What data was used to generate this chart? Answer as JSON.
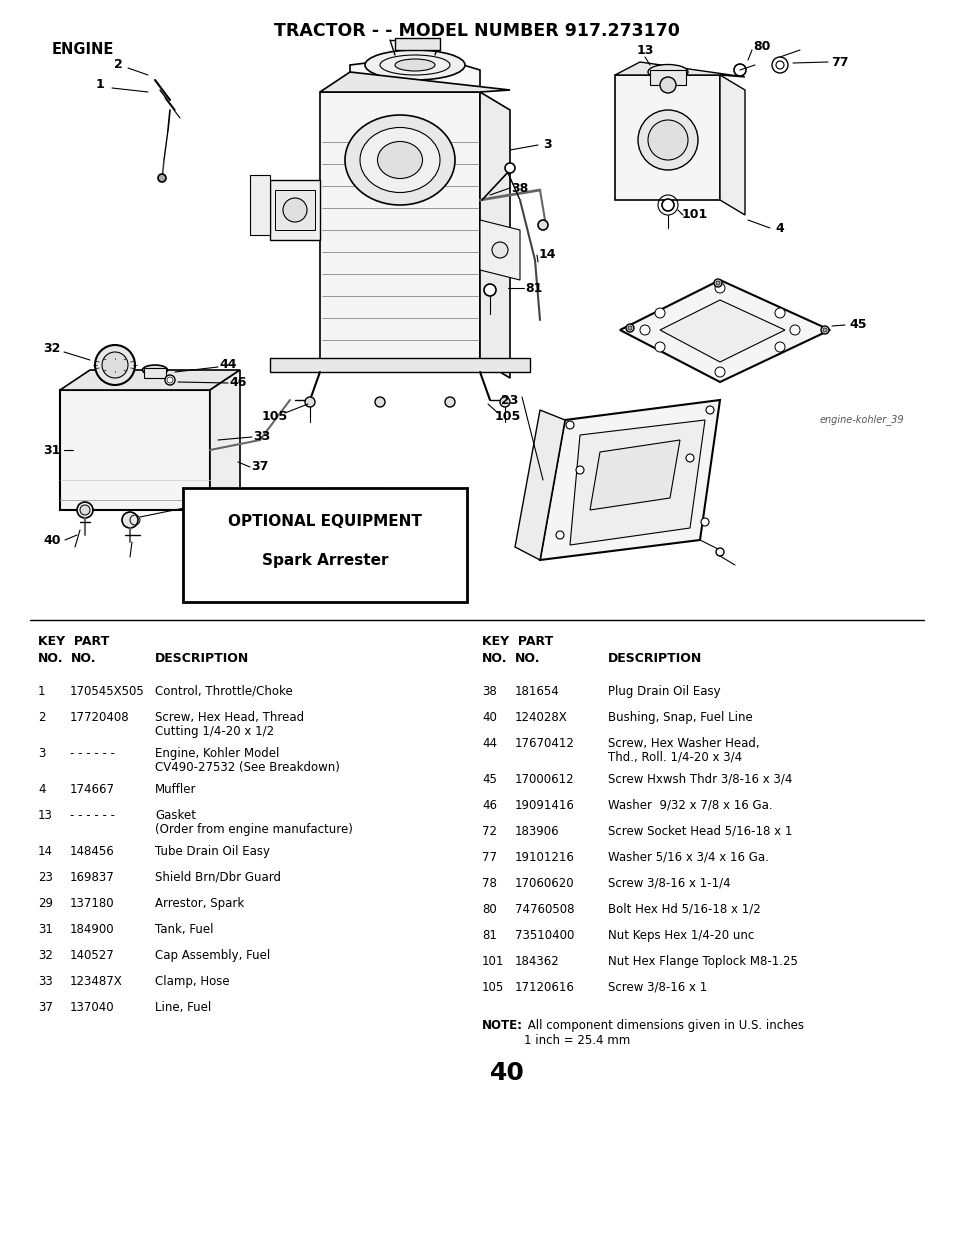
{
  "title": "TRACTOR - - MODEL NUMBER 917.273170",
  "section": "ENGINE",
  "image_credit": "engine-kohler_39",
  "page_number": "40",
  "optional_equipment_title": "OPTIONAL EQUIPMENT",
  "optional_equipment_item": "Spark Arrester",
  "bg_color": "#ffffff",
  "text_color": "#000000",
  "parts_left": [
    [
      "1",
      "170545X505",
      "Control, Throttle/Choke",
      false
    ],
    [
      "2",
      "17720408",
      "Screw, Hex Head, Thread",
      true,
      "Cutting 1/4-20 x 1/2"
    ],
    [
      "3",
      "- - - - - -",
      "Engine, Kohler Model",
      true,
      "CV490-27532 (See Breakdown)"
    ],
    [
      "4",
      "174667",
      "Muffler",
      false,
      ""
    ],
    [
      "13",
      "- - - - - -",
      "Gasket",
      true,
      "(Order from engine manufacture)"
    ],
    [
      "14",
      "148456",
      "Tube Drain Oil Easy",
      false,
      ""
    ],
    [
      "23",
      "169837",
      "Shield Brn/Dbr Guard",
      false,
      ""
    ],
    [
      "29",
      "137180",
      "Arrestor, Spark",
      false,
      ""
    ],
    [
      "31",
      "184900",
      "Tank, Fuel",
      false,
      ""
    ],
    [
      "32",
      "140527",
      "Cap Assembly, Fuel",
      false,
      ""
    ],
    [
      "33",
      "123487X",
      "Clamp, Hose",
      false,
      ""
    ],
    [
      "37",
      "137040",
      "Line, Fuel",
      false,
      ""
    ]
  ],
  "parts_right": [
    [
      "38",
      "181654",
      "Plug Drain Oil Easy",
      false,
      ""
    ],
    [
      "40",
      "124028X",
      "Bushing, Snap, Fuel Line",
      false,
      ""
    ],
    [
      "44",
      "17670412",
      "Screw, Hex Washer Head,",
      true,
      "Thd., Roll. 1/4-20 x 3/4"
    ],
    [
      "45",
      "17000612",
      "Screw Hxwsh Thdr 3/8-16 x 3/4",
      false,
      ""
    ],
    [
      "46",
      "19091416",
      "Washer  9/32 x 7/8 x 16 Ga.",
      false,
      ""
    ],
    [
      "72",
      "183906",
      "Screw Socket Head 5/16-18 x 1",
      false,
      ""
    ],
    [
      "77",
      "19101216",
      "Washer 5/16 x 3/4 x 16 Ga.",
      false,
      ""
    ],
    [
      "78",
      "17060620",
      "Screw 3/8-16 x 1-1/4",
      false,
      ""
    ],
    [
      "80",
      "74760508",
      "Bolt Hex Hd 5/16-18 x 1/2",
      false,
      ""
    ],
    [
      "81",
      "73510400",
      "Nut Keps Hex 1/4-20 unc",
      false,
      ""
    ],
    [
      "101",
      "184362",
      "Nut Hex Flange Toplock M8-1.25",
      false,
      ""
    ],
    [
      "105",
      "17120616",
      "Screw 3/8-16 x 1",
      false,
      ""
    ]
  ]
}
